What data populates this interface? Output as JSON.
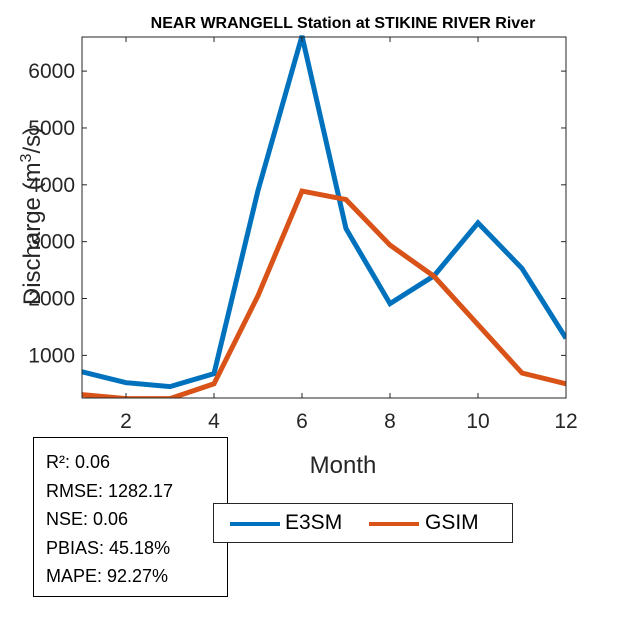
{
  "chart_data": {
    "type": "line",
    "title": "NEAR WRANGELL  Station at  STIKINE RIVER  River",
    "xlabel": "Month",
    "ylabel": "Discharge (m",
    "ylabel_sup": "3",
    "ylabel_tail": "/s)",
    "xlim": [
      1,
      12
    ],
    "ylim": [
      250,
      6600
    ],
    "xticks": [
      2,
      4,
      6,
      8,
      10,
      12
    ],
    "yticks": [
      1000,
      2000,
      3000,
      4000,
      5000,
      6000
    ],
    "x": [
      1,
      2,
      3,
      4,
      5,
      6,
      7,
      8,
      9,
      10,
      11,
      12
    ],
    "series": [
      {
        "name": "E3SM",
        "color": "#0072BD",
        "values": [
          710,
          520,
          450,
          680,
          3900,
          6620,
          3230,
          1910,
          2400,
          3330,
          2530,
          1300
        ]
      },
      {
        "name": "GSIM",
        "color": "#D95319",
        "values": [
          310,
          240,
          240,
          500,
          2050,
          3890,
          3740,
          2940,
          2390,
          1540,
          690,
          500
        ]
      }
    ]
  },
  "stats": {
    "r2": "R²: 0.06",
    "rmse": "RMSE: 1282.17",
    "nse": "NSE: 0.06",
    "pbias": "PBIAS: 45.18%",
    "mape": "MAPE: 92.27%"
  }
}
